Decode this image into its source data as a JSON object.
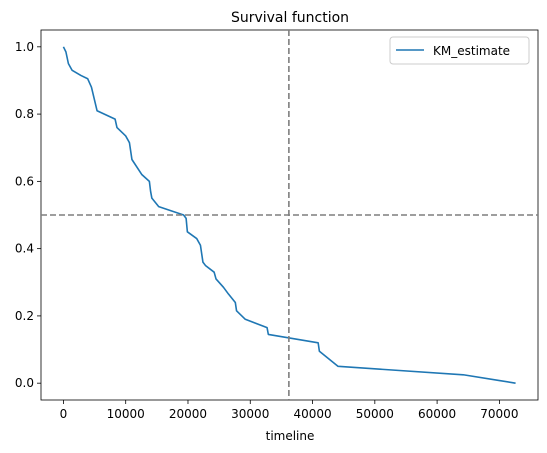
{
  "chart_data": {
    "type": "line",
    "title": "Survival function",
    "xlabel": "timeline",
    "ylabel": "",
    "xlim": [
      -3600,
      76200
    ],
    "ylim": [
      -0.05,
      1.05
    ],
    "xticks": [
      0,
      10000,
      20000,
      30000,
      40000,
      50000,
      60000,
      70000
    ],
    "yticks": [
      0.0,
      0.2,
      0.4,
      0.6,
      0.8,
      1.0
    ],
    "xtick_labels": [
      "0",
      "10000",
      "20000",
      "30000",
      "40000",
      "50000",
      "60000",
      "70000"
    ],
    "ytick_labels": [
      "0.0",
      "0.2",
      "0.4",
      "0.6",
      "0.8",
      "1.0"
    ],
    "grid": false,
    "legend": {
      "position": "top-right",
      "entries": [
        "KM_estimate"
      ]
    },
    "colors": {
      "series": "#1f77b4",
      "reference_lines": "#7f7f7f"
    },
    "reference_lines": {
      "vertical_x": 36200,
      "horizontal_y": 0.5,
      "style": "dashed"
    },
    "series": [
      {
        "name": "KM_estimate",
        "x": [
          0,
          400,
          800,
          1400,
          2800,
          3900,
          4500,
          5400,
          8300,
          8600,
          10000,
          10600,
          11000,
          12600,
          13800,
          14000,
          14200,
          15300,
          19300,
          19700,
          19900,
          21400,
          22000,
          22400,
          22800,
          24200,
          24500,
          25700,
          26500,
          27600,
          27800,
          29200,
          32700,
          32900,
          40900,
          41100,
          44100,
          64200,
          72600
        ],
        "y": [
          1.0,
          0.985,
          0.95,
          0.93,
          0.915,
          0.905,
          0.88,
          0.81,
          0.785,
          0.76,
          0.735,
          0.715,
          0.665,
          0.62,
          0.6,
          0.57,
          0.55,
          0.525,
          0.5,
          0.49,
          0.45,
          0.43,
          0.41,
          0.36,
          0.35,
          0.33,
          0.31,
          0.285,
          0.265,
          0.24,
          0.215,
          0.19,
          0.165,
          0.145,
          0.12,
          0.095,
          0.05,
          0.025,
          0.0
        ]
      }
    ]
  }
}
